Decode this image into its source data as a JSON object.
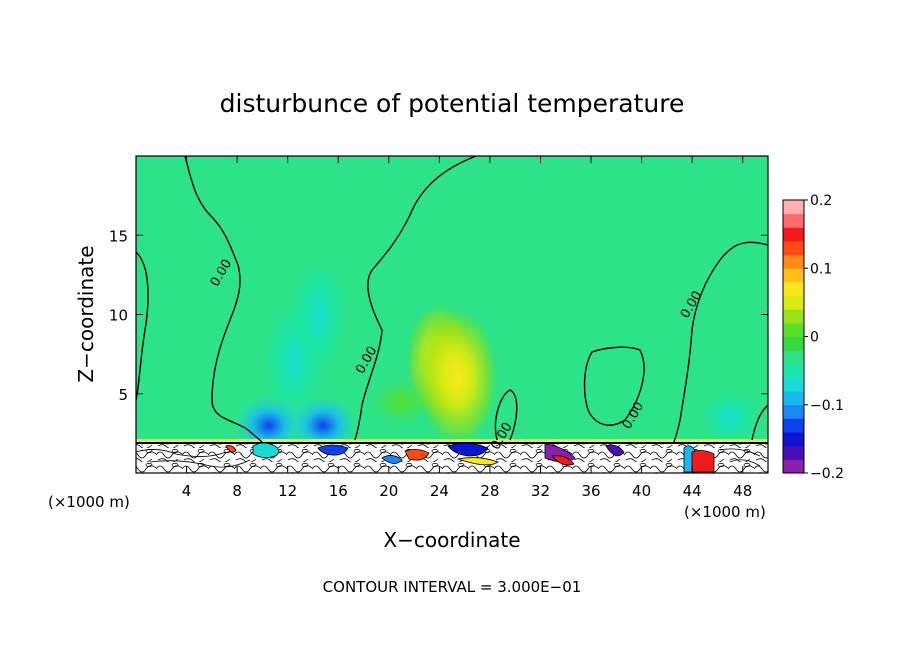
{
  "chart_data": {
    "type": "heatmap",
    "title": "disturbunce of potential temperature",
    "xlabel": "X−coordinate",
    "ylabel": "Z−coordinate",
    "x_unit_left": "(×1000 m)",
    "x_unit_right": "(×1000 m)",
    "footer": "CONTOUR INTERVAL = 3.000E−01",
    "xlim": [
      0,
      50
    ],
    "ylim": [
      0,
      20
    ],
    "x_ticks": [
      4,
      8,
      12,
      16,
      20,
      24,
      28,
      32,
      36,
      40,
      44,
      48
    ],
    "x_tick_labels": [
      "4",
      "8",
      "12",
      "16",
      "20",
      "24",
      "28",
      "32",
      "36",
      "40",
      "44",
      "48"
    ],
    "y_ticks": [
      5,
      10,
      15
    ],
    "y_tick_labels": [
      "5",
      "10",
      "15"
    ],
    "colorbar": {
      "range": [
        -0.2,
        0.2
      ],
      "tick_values": [
        0.2,
        0.1,
        0,
        -0.1,
        -0.2
      ],
      "tick_labels": [
        "0.2",
        "0.1",
        "0",
        "−0.1",
        "−0.2"
      ],
      "colors": [
        "#8a1fb0",
        "#4a10b8",
        "#0b14d2",
        "#1040ee",
        "#1a86f0",
        "#1ab8f0",
        "#16dcd6",
        "#19e6a8",
        "#2de38a",
        "#37d93e",
        "#58e028",
        "#9ae016",
        "#d8ec10",
        "#fbe81c",
        "#ffbf18",
        "#ff8a14",
        "#ff4a14",
        "#f21a1a",
        "#ff6a6a",
        "#ffb0b0"
      ]
    },
    "contour_labels": [
      {
        "text": "0.00",
        "x": 7.0,
        "y": 12.5
      },
      {
        "text": "0.00",
        "x": 18.5,
        "y": 7.0
      },
      {
        "text": "0.00",
        "x": 29.2,
        "y": 2.2
      },
      {
        "text": "0.00",
        "x": 39.6,
        "y": 3.5
      },
      {
        "text": "0.00",
        "x": 44.2,
        "y": 10.5
      }
    ],
    "anomalies": [
      {
        "x": 12.5,
        "z": 7.0,
        "value": -0.05
      },
      {
        "x": 14.5,
        "z": 10.0,
        "value": -0.03
      },
      {
        "x": 10.5,
        "z": 3.0,
        "value": -0.1
      },
      {
        "x": 14.8,
        "z": 3.0,
        "value": -0.1
      },
      {
        "x": 24.0,
        "z": 7.0,
        "value": 0.05
      },
      {
        "x": 25.5,
        "z": 6.0,
        "value": 0.1
      },
      {
        "x": 21.0,
        "z": 4.5,
        "value": 0.02
      },
      {
        "x": 47.0,
        "z": 3.5,
        "value": -0.05
      }
    ]
  }
}
